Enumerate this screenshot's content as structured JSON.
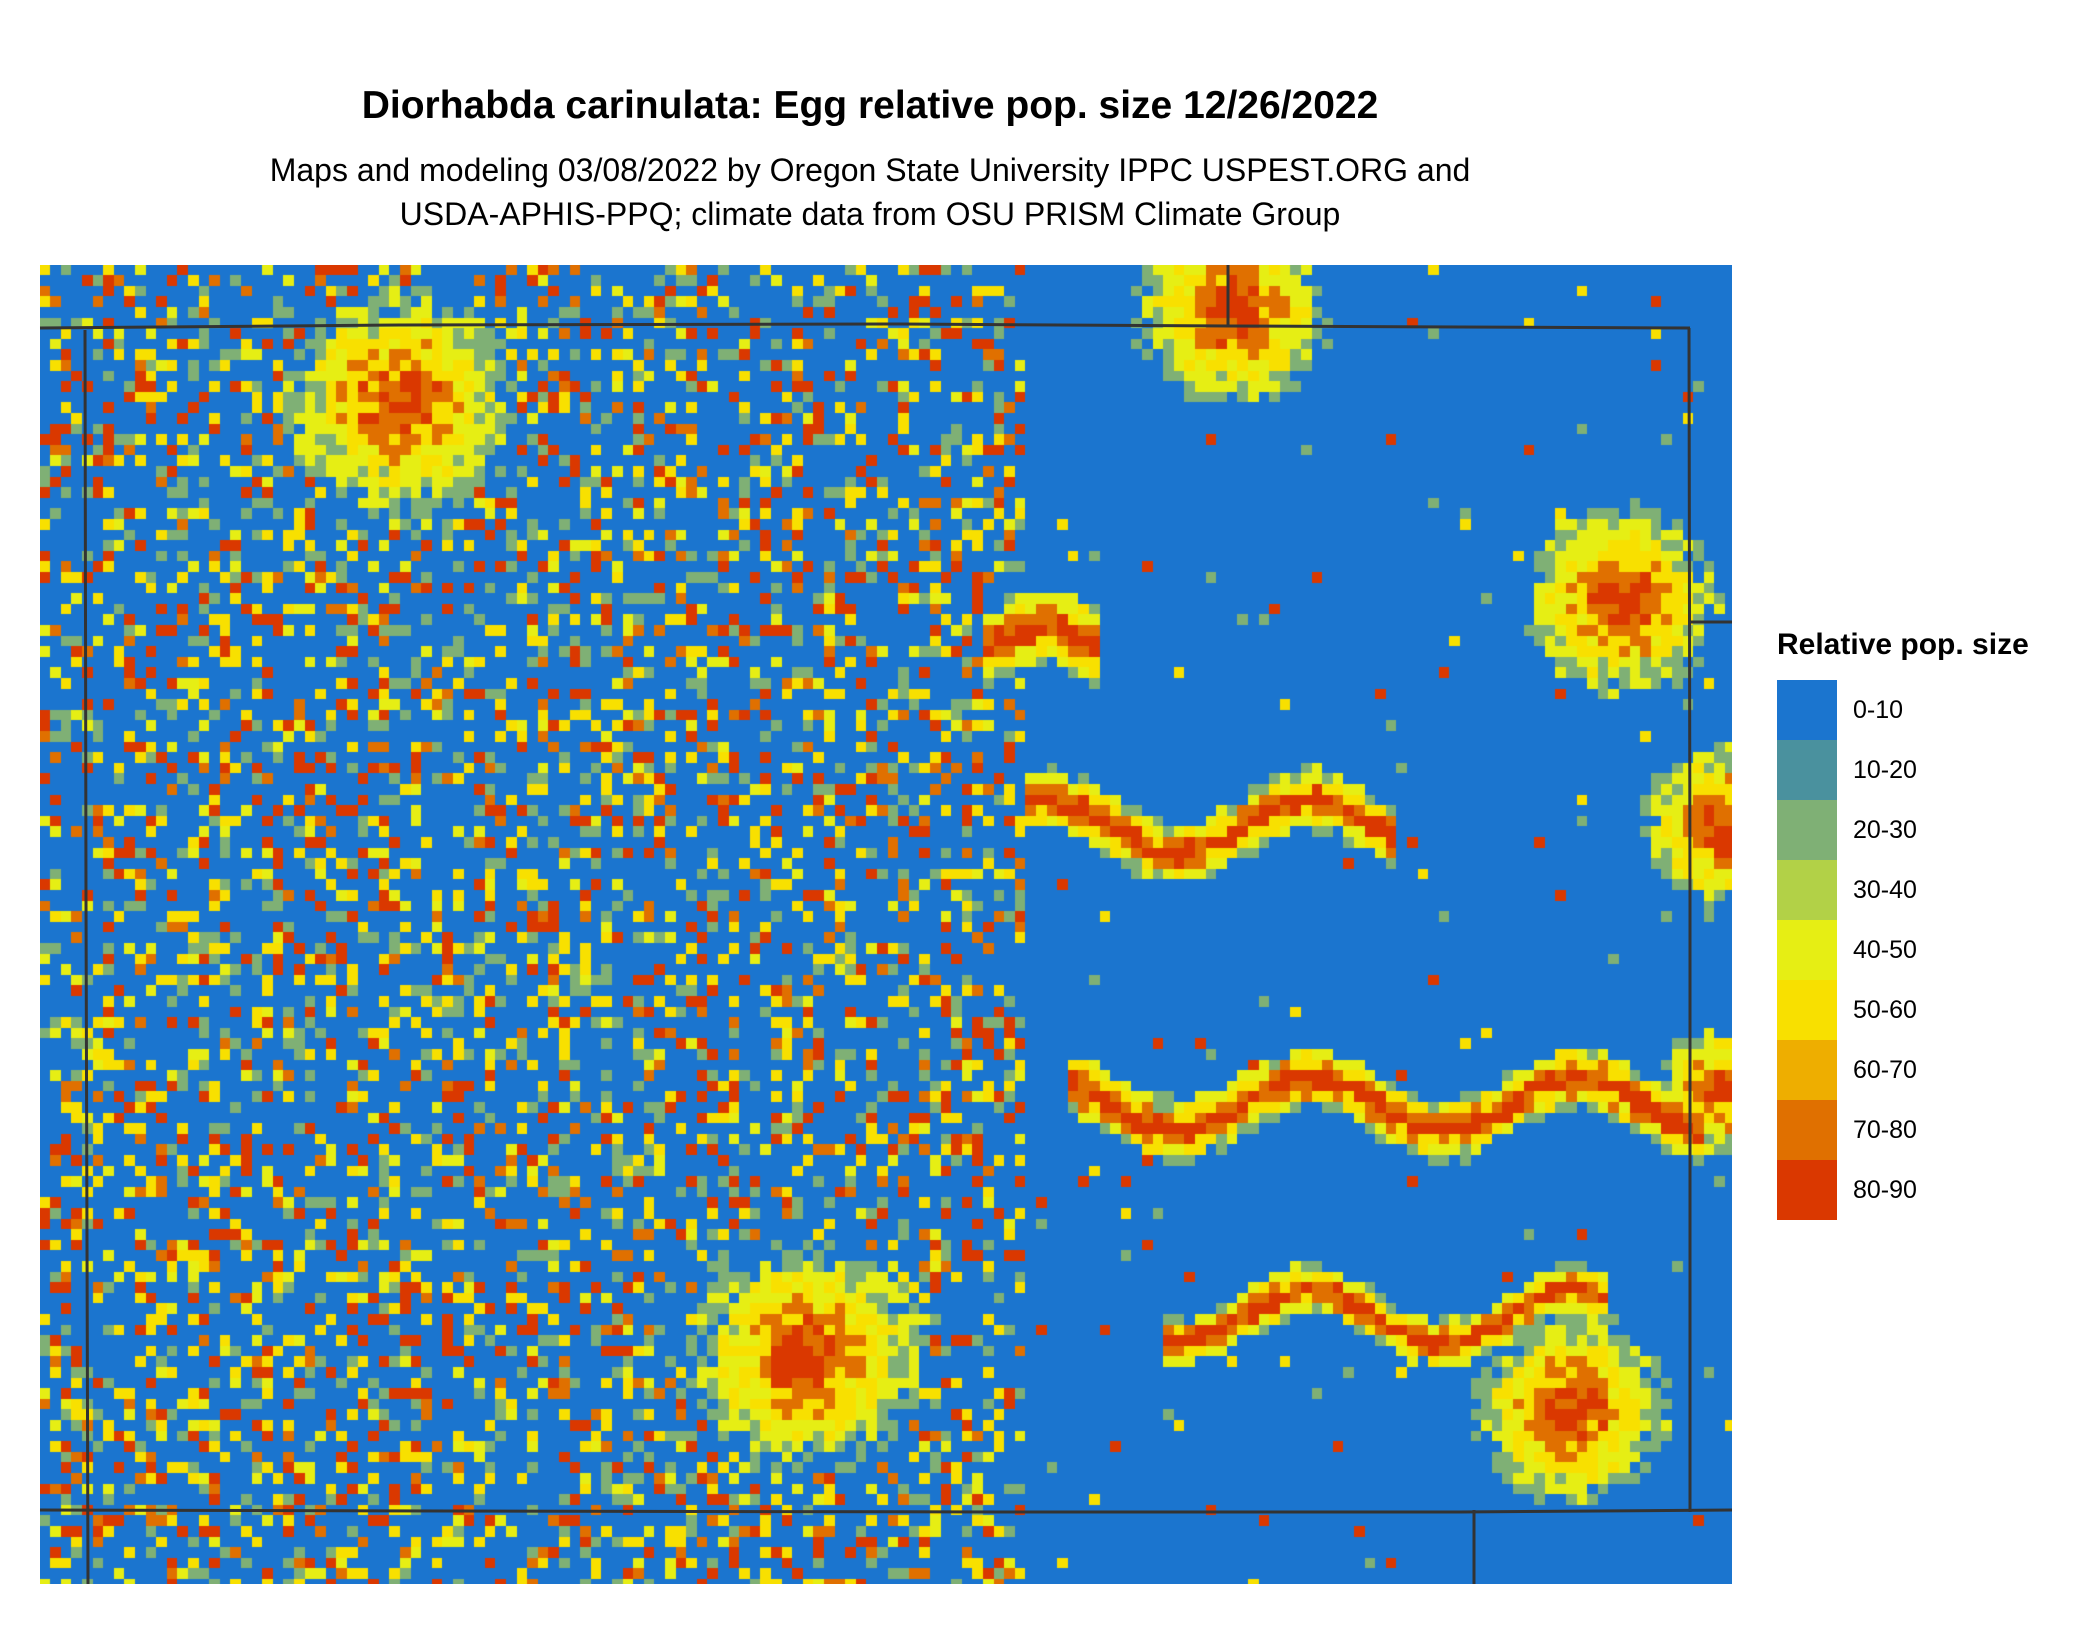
{
  "title": "Diorhabda carinulata: Egg relative pop. size 12/26/2022",
  "subtitle_lines": [
    "Maps and modeling 03/08/2022 by Oregon State University IPPC USPEST.ORG and",
    "USDA-APHIS-PPQ; climate data from OSU PRISM Climate Group"
  ],
  "legend": {
    "title": "Relative pop. size",
    "items": [
      {
        "label": "0-10",
        "color": "#1b75cf"
      },
      {
        "label": "10-20",
        "color": "#4a919e"
      },
      {
        "label": "20-30",
        "color": "#7fb075"
      },
      {
        "label": "30-40",
        "color": "#b2d147"
      },
      {
        "label": "40-50",
        "color": "#e6ee14"
      },
      {
        "label": "50-60",
        "color": "#f8e000"
      },
      {
        "label": "60-70",
        "color": "#eeae00"
      },
      {
        "label": "70-80",
        "color": "#e07000"
      },
      {
        "label": "80-90",
        "color": "#da3800"
      }
    ]
  },
  "border_color": "#333333"
}
